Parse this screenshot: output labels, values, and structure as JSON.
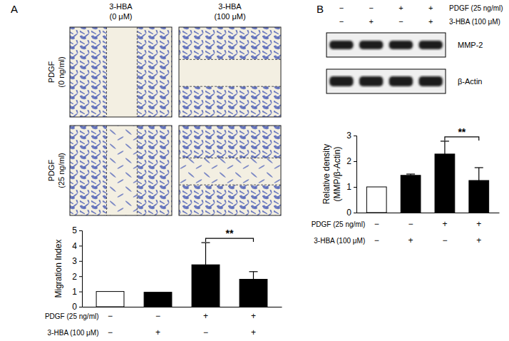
{
  "chart_data": [
    {
      "type": "bar",
      "y_label": [
        "Migration Index"
      ],
      "categories": [
        null,
        null,
        null,
        null
      ],
      "values": [
        1,
        0.95,
        2.75,
        1.8
      ],
      "errors": [
        0,
        0,
        1.45,
        0.5
      ],
      "colors": [
        "#ffffff",
        "#000000",
        "#000000",
        "#000000"
      ],
      "ylim": [
        0,
        5
      ],
      "yticks": [
        0,
        1,
        2,
        3,
        4,
        5
      ],
      "conditions": [
        {
          "label": "PDGF (25 ng/ml)",
          "marks": [
            "−",
            "−",
            "+",
            "+"
          ]
        },
        {
          "label": "3-HBA (100 μM)",
          "marks": [
            "−",
            "+",
            "−",
            "+"
          ]
        }
      ],
      "significance": [
        {
          "label": "**",
          "pair": [
            2,
            3
          ]
        }
      ]
    },
    {
      "type": "bar",
      "y_label": [
        "Relative density",
        "(MMP/β-Actin)"
      ],
      "categories": [
        null,
        null,
        null,
        null
      ],
      "values": [
        1,
        1.45,
        2.28,
        1.25
      ],
      "errors": [
        0,
        0.05,
        0.5,
        0.5
      ],
      "colors": [
        "#ffffff",
        "#000000",
        "#000000",
        "#000000"
      ],
      "ylim": [
        0,
        3
      ],
      "yticks": [
        0,
        1,
        2,
        3
      ],
      "conditions": [
        {
          "label": "PDGF (25 ng/ml)",
          "marks": [
            "−",
            "−",
            "+",
            "+"
          ]
        },
        {
          "label": "3-HBA (100 μM)",
          "marks": [
            "−",
            "+",
            "−",
            "+"
          ]
        }
      ],
      "significance": [
        {
          "label": "**",
          "pair": [
            2,
            3
          ]
        }
      ]
    }
  ],
  "figure": {
    "panel_labels": [
      "A",
      "B"
    ],
    "micrographs": {
      "columns": [
        [
          "3-HBA",
          "(0 μM)"
        ],
        [
          "3-HBA",
          "(100 μM)"
        ]
      ],
      "rows": [
        [
          "PDGF",
          "(0 ng/ml)"
        ],
        [
          "PDGF",
          "(25 ng/ml)"
        ]
      ]
    },
    "blot": {
      "conditions": [
        {
          "label": "PDGF (25 ng/ml)",
          "marks": [
            "−",
            "−",
            "+",
            "+"
          ]
        },
        {
          "label": "3-HBA (100 μM)",
          "marks": [
            "−",
            "+",
            "−",
            "+"
          ]
        }
      ],
      "bands": [
        "MMP-2",
        "β-Actin"
      ]
    }
  }
}
